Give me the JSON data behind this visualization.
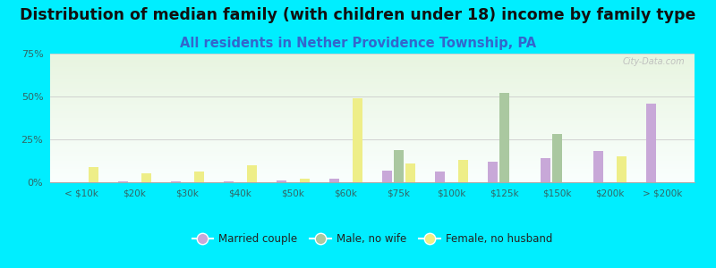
{
  "title": "Distribution of median family (with children under 18) income by family type",
  "subtitle": "All residents in Nether Providence Township, PA",
  "categories": [
    "< $10k",
    "$20k",
    "$30k",
    "$40k",
    "$50k",
    "$60k",
    "$75k",
    "$100k",
    "$125k",
    "$150k",
    "$200k",
    "> $200k"
  ],
  "married_couple": [
    0.0,
    0.5,
    0.5,
    0.5,
    1.0,
    2.0,
    7.0,
    6.0,
    12.0,
    14.0,
    18.0,
    46.0
  ],
  "male_no_wife": [
    0.0,
    0.0,
    0.0,
    0.0,
    0.0,
    0.0,
    19.0,
    0.0,
    52.0,
    28.0,
    0.0,
    0.0
  ],
  "female_no_husband": [
    9.0,
    5.0,
    6.0,
    10.0,
    2.0,
    49.0,
    11.0,
    13.0,
    0.0,
    0.0,
    15.0,
    0.0
  ],
  "color_married": "#c8a8d8",
  "color_male": "#aac8a0",
  "color_female": "#eeee88",
  "ylim": [
    0,
    75
  ],
  "yticks": [
    0,
    25,
    50,
    75
  ],
  "yticklabels": [
    "0%",
    "25%",
    "50%",
    "75%"
  ],
  "fig_bg": "#00eeff",
  "plot_bg_top": "#e8f5e0",
  "plot_bg_bottom": "#fafffe",
  "title_fontsize": 12.5,
  "subtitle_fontsize": 10.5,
  "title_color": "#111111",
  "subtitle_color": "#3366cc",
  "tick_color": "#336666",
  "watermark": "City-Data.com",
  "label_married": "Married couple",
  "label_male": "Male, no wife",
  "label_female": "Female, no husband"
}
